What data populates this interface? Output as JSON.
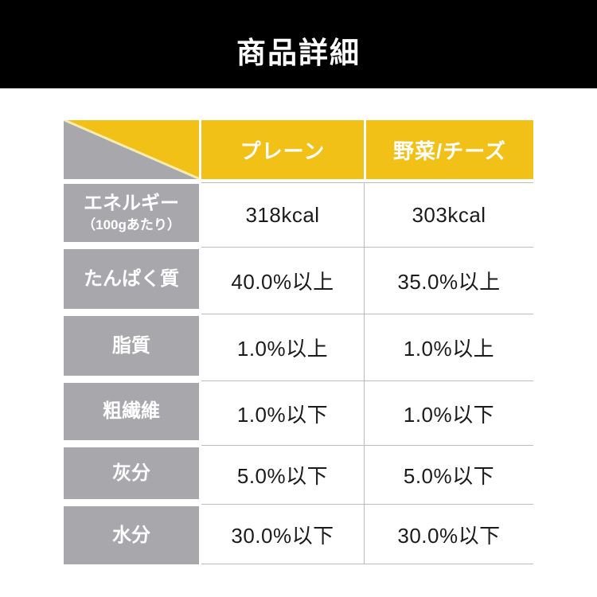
{
  "header": {
    "title": "商品詳細"
  },
  "table": {
    "column_headers": [
      "プレーン",
      "野菜/チーズ"
    ],
    "rows": [
      {
        "label": "エネルギー",
        "sublabel": "（100gあたり）",
        "values": [
          "318kcal",
          "303kcal"
        ]
      },
      {
        "label": "たんぱく質",
        "values": [
          "40.0%以上",
          "35.0%以上"
        ]
      },
      {
        "label": "脂質",
        "values": [
          "1.0%以上",
          "1.0%以上"
        ]
      },
      {
        "label": "粗繊維",
        "values": [
          "1.0%以下",
          "1.0%以下"
        ]
      },
      {
        "label": "灰分",
        "values": [
          "5.0%以下",
          "5.0%以下"
        ]
      },
      {
        "label": "水分",
        "values": [
          "30.0%以下",
          "30.0%以下"
        ]
      }
    ],
    "colors": {
      "header_yellow": "#F2C117",
      "label_gray": "#A8A7AB",
      "hairline_gray": "#BCBCBC",
      "diagonal_line": "#F6ECB0",
      "title_bar": "#000000"
    }
  },
  "chart_data": {
    "type": "table",
    "title": "商品詳細",
    "columns": [
      "",
      "プレーン",
      "野菜/チーズ"
    ],
    "rows": [
      [
        "エネルギー（100gあたり）",
        "318kcal",
        "303kcal"
      ],
      [
        "たんぱく質",
        "40.0%以上",
        "35.0%以上"
      ],
      [
        "脂質",
        "1.0%以上",
        "1.0%以上"
      ],
      [
        "粗繊維",
        "1.0%以下",
        "1.0%以下"
      ],
      [
        "灰分",
        "5.0%以下",
        "5.0%以下"
      ],
      [
        "水分",
        "30.0%以下",
        "30.0%以下"
      ]
    ],
    "layout_hints": {
      "header_fill": "#F2C117",
      "row_label_fill": "#A8A7AB",
      "corner_cell": "diagonal-split-yellow-over-gray"
    }
  }
}
